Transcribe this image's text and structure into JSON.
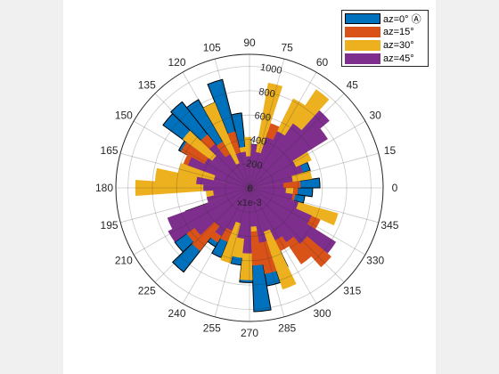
{
  "chart_data": {
    "type": "polar-histogram",
    "theta_ticks": [
      "0",
      "15",
      "30",
      "45",
      "60",
      "75",
      "90",
      "105",
      "120",
      "135",
      "150",
      "165",
      "180",
      "195",
      "210",
      "225",
      "240",
      "255",
      "270",
      "285",
      "300",
      "315",
      "330",
      "345"
    ],
    "r_ticks": [
      "0",
      "200",
      "400",
      "600",
      "800",
      "1000"
    ],
    "r_lim": [
      0,
      1100
    ],
    "r_scale_label": "x1e-3",
    "grid": true,
    "legend_position": "top-right",
    "series": [
      {
        "name": "az=0° Ⓐ",
        "color": "#0072BD",
        "outlined": true,
        "theta": [
          0,
          8,
          16,
          24,
          32,
          40,
          48,
          56,
          64,
          72,
          80,
          88,
          96,
          104,
          112,
          120,
          128,
          136,
          144,
          152,
          160,
          168,
          176,
          184,
          192,
          200,
          208,
          216,
          224,
          232,
          240,
          248,
          256,
          264,
          272,
          280,
          288,
          296,
          304,
          312,
          320,
          328,
          336,
          344,
          352
        ],
        "r": [
          580,
          400,
          520,
          360,
          420,
          320,
          260,
          180,
          480,
          220,
          360,
          380,
          620,
          920,
          760,
          840,
          900,
          880,
          660,
          540,
          340,
          380,
          280,
          220,
          320,
          560,
          660,
          760,
          880,
          560,
          620,
          420,
          640,
          780,
          1020,
          820,
          720,
          520,
          320,
          440,
          460,
          300,
          420,
          460,
          520
        ]
      },
      {
        "name": "az=15°",
        "color": "#D95319",
        "outlined": false,
        "theta": [
          0,
          8,
          16,
          24,
          32,
          40,
          48,
          56,
          64,
          72,
          80,
          88,
          96,
          104,
          112,
          120,
          128,
          136,
          144,
          152,
          160,
          168,
          176,
          184,
          192,
          200,
          208,
          216,
          224,
          232,
          240,
          248,
          256,
          264,
          272,
          280,
          288,
          296,
          304,
          312,
          320,
          328,
          336,
          344,
          352
        ],
        "r": [
          420,
          320,
          380,
          300,
          340,
          520,
          640,
          700,
          560,
          420,
          300,
          260,
          340,
          480,
          360,
          440,
          560,
          520,
          640,
          580,
          420,
          300,
          240,
          260,
          360,
          500,
          560,
          640,
          660,
          520,
          480,
          380,
          420,
          560,
          640,
          720,
          640,
          580,
          760,
          880,
          820,
          640,
          420,
          380,
          400
        ]
      },
      {
        "name": "az=30°",
        "color": "#EDB120",
        "outlined": false,
        "theta": [
          0,
          8,
          16,
          24,
          32,
          40,
          48,
          56,
          64,
          72,
          80,
          88,
          96,
          104,
          112,
          120,
          128,
          136,
          144,
          152,
          160,
          168,
          176,
          184,
          192,
          200,
          208,
          216,
          224,
          232,
          240,
          248,
          256,
          264,
          272,
          280,
          288,
          296,
          304,
          312,
          320,
          328,
          336,
          344,
          352
        ],
        "r": [
          260,
          520,
          300,
          560,
          760,
          540,
          980,
          820,
          420,
          880,
          260,
          420,
          340,
          300,
          760,
          280,
          420,
          680,
          280,
          380,
          600,
          780,
          940,
          360,
          280,
          380,
          320,
          260,
          300,
          460,
          300,
          640,
          580,
          760,
          360,
          260,
          880,
          420,
          360,
          480,
          420,
          280,
          760,
          300,
          360
        ]
      },
      {
        "name": "az=45°",
        "color": "#7E2F8E",
        "outlined": false,
        "theta": [
          0,
          8,
          16,
          24,
          32,
          40,
          48,
          56,
          64,
          72,
          80,
          88,
          96,
          104,
          112,
          120,
          128,
          136,
          144,
          152,
          160,
          168,
          176,
          184,
          192,
          200,
          208,
          216,
          224,
          232,
          240,
          248,
          256,
          264,
          272,
          280,
          288,
          296,
          304,
          312,
          320,
          328,
          336,
          344,
          352
        ],
        "r": [
          280,
          360,
          460,
          420,
          760,
          860,
          640,
          520,
          440,
          300,
          360,
          260,
          300,
          300,
          220,
          320,
          460,
          380,
          420,
          540,
          300,
          440,
          380,
          300,
          360,
          720,
          760,
          560,
          400,
          460,
          380,
          300,
          420,
          540,
          320,
          460,
          380,
          480,
          540,
          620,
          840,
          560,
          420,
          360,
          300
        ]
      }
    ]
  }
}
